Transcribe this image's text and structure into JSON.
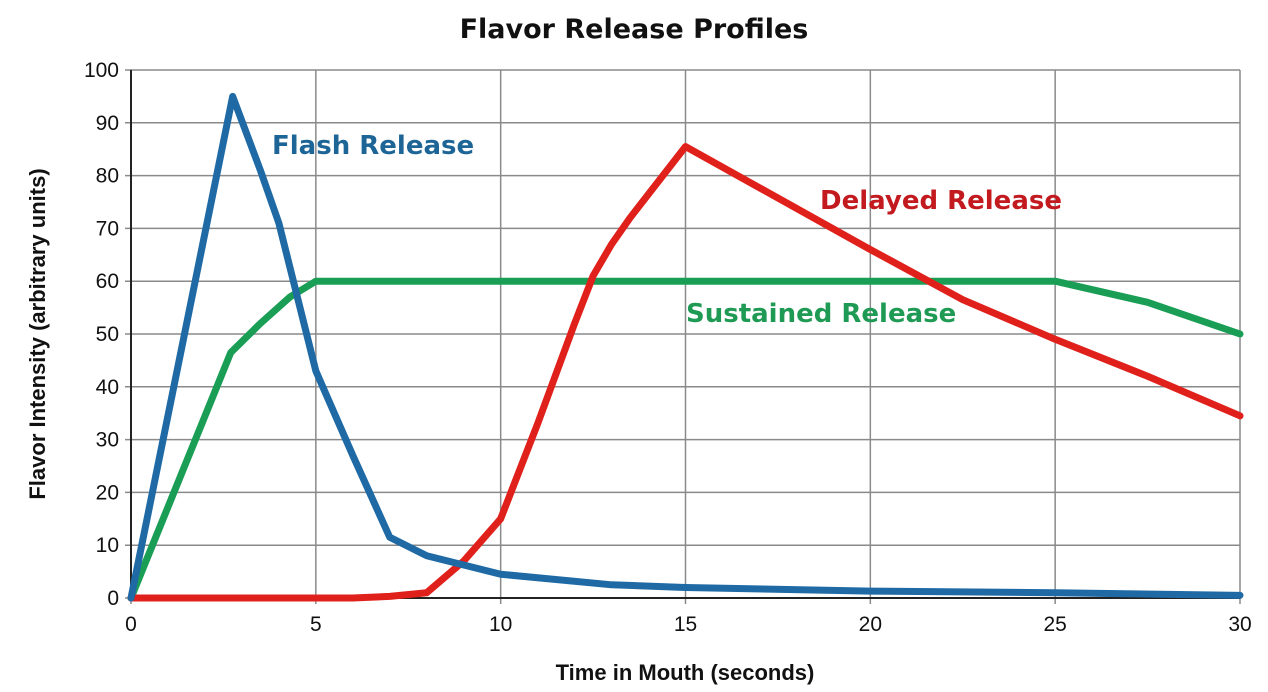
{
  "chart_data": {
    "type": "line",
    "title": "Flavor Release Profiles",
    "xlabel": "Time in Mouth (seconds)",
    "ylabel": "Flavor Intensity (arbitrary units)",
    "xlim": [
      0,
      30
    ],
    "ylim": [
      0,
      100
    ],
    "xticks": [
      0,
      5,
      10,
      15,
      20,
      25,
      30
    ],
    "yticks": [
      0,
      10,
      20,
      30,
      40,
      50,
      60,
      70,
      80,
      90,
      100
    ],
    "grid": true,
    "series": [
      {
        "name": "Flash Release",
        "color": "#1f6aa5",
        "label_color": "#1d6596",
        "x": [
          0,
          2.75,
          3.5,
          4,
          5,
          6,
          7,
          8,
          10,
          13,
          15,
          20,
          25,
          30
        ],
        "y": [
          0,
          95,
          81,
          71,
          43,
          27,
          11.5,
          8,
          4.5,
          2.5,
          2,
          1.3,
          1,
          0.5
        ]
      },
      {
        "name": "Delayed Release",
        "color": "#e0201b",
        "label_color": "#c21a1f",
        "x": [
          0,
          6,
          7,
          8,
          9,
          10,
          11,
          12,
          12.5,
          13,
          13.5,
          15,
          20,
          22.5,
          25,
          27.5,
          30
        ],
        "y": [
          0,
          0,
          0.3,
          1,
          7,
          15,
          33,
          52,
          61,
          67,
          72,
          85.5,
          66,
          56.5,
          49,
          42,
          34.5
        ]
      },
      {
        "name": "Sustained Release",
        "color": "#1a9e55",
        "label_color": "#1f9a55",
        "x": [
          0,
          2.7,
          3.5,
          4.3,
          5,
          25,
          27.5,
          30
        ],
        "y": [
          0,
          46.5,
          52,
          57,
          60,
          60,
          56,
          50
        ]
      }
    ]
  }
}
